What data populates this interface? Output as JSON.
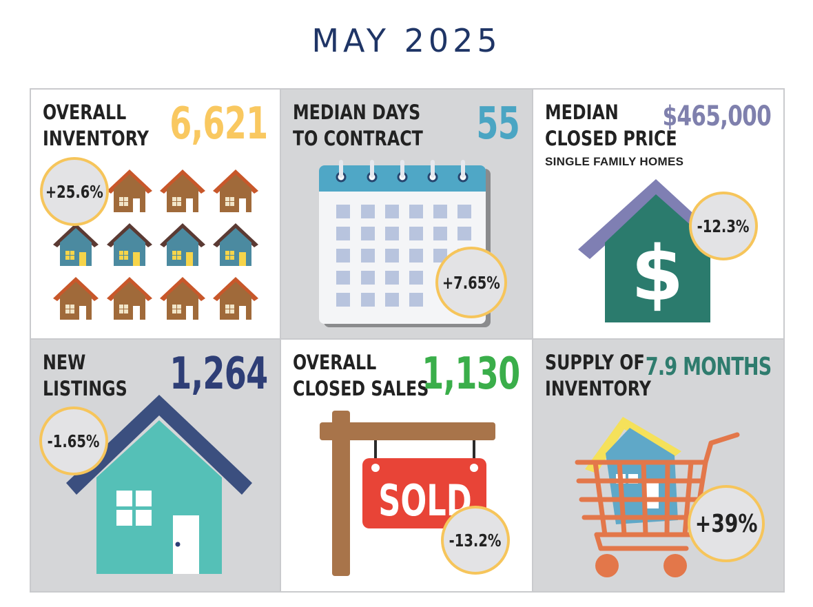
{
  "title": "MAY 2025",
  "colors": {
    "title": "#1f3566",
    "badge_border": "#f6c55b",
    "inventory_value": "#f9c860",
    "days_value": "#4aa5c3",
    "price_value": "#7f80ad",
    "listings_value": "#2e3e76",
    "sales_value": "#3aae4a",
    "supply_value": "#2f7c6e"
  },
  "panels": {
    "overall_inventory": {
      "label_line1": "OVERALL",
      "label_line2": "INVENTORY",
      "value": "6,621",
      "change": "+25.6%",
      "icon": "houses-icon"
    },
    "median_days": {
      "label_line1": "MEDIAN DAYS",
      "label_line2": "TO CONTRACT",
      "value": "55",
      "change": "+7.65%",
      "icon": "calendar-icon"
    },
    "median_price": {
      "label_line1": "MEDIAN",
      "label_line2": "CLOSED PRICE",
      "sublabel": "SINGLE FAMILY HOMES",
      "value": "$465,000",
      "change": "-12.3%",
      "icon": "house-dollar-icon"
    },
    "new_listings": {
      "label_line1": "NEW",
      "label_line2": "LISTINGS",
      "value": "1,264",
      "change": "-1.65%",
      "icon": "house-icon"
    },
    "closed_sales": {
      "label_line1": "OVERALL",
      "label_line2": "CLOSED SALES",
      "value": "1,130",
      "change": "-13.2%",
      "sign_text": "SOLD",
      "icon": "sold-sign-icon"
    },
    "supply": {
      "label_line1": "SUPPLY OF",
      "label_line2": "INVENTORY",
      "value": "7.9 MONTHS",
      "change": "+39%",
      "icon": "shopping-cart-house-icon"
    }
  }
}
